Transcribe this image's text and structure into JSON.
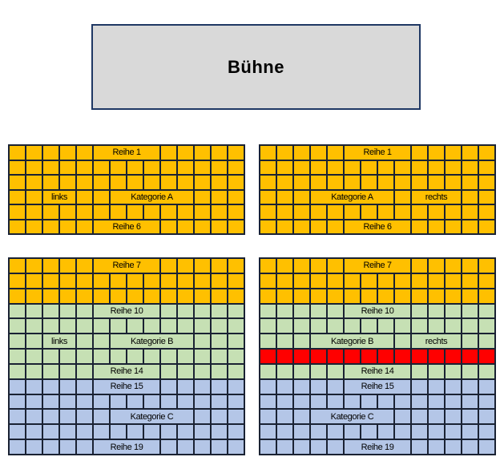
{
  "stage": {
    "label": "Bühne"
  },
  "colors": {
    "orange": "#FFC000",
    "green": "#C6E0B4",
    "blue": "#B4C6E7",
    "red": "#FF0000",
    "stage_fill": "#D9D9D9",
    "stage_border": "#1F3864",
    "grid_border": "#1A2233",
    "background": "#FFFFFF",
    "text": "#000000"
  },
  "blocks": [
    {
      "id": "upper_left",
      "side": "links",
      "cols": 14,
      "rows": [
        {
          "color": "orange",
          "labels": [
            {
              "text": "Reihe 1",
              "start": 6,
              "span": 4
            }
          ]
        },
        {
          "color": "orange",
          "labels": []
        },
        {
          "color": "orange",
          "labels": []
        },
        {
          "color": "orange",
          "labels": [
            {
              "text": "links",
              "start": 3,
              "span": 2
            },
            {
              "text": "Kategorie A",
              "start": 7,
              "span": 5
            }
          ]
        },
        {
          "color": "orange",
          "labels": []
        },
        {
          "color": "orange",
          "labels": [
            {
              "text": "Reihe 6",
              "start": 6,
              "span": 4
            }
          ]
        }
      ]
    },
    {
      "id": "upper_right",
      "side": "rechts",
      "cols": 14,
      "rows": [
        {
          "color": "orange",
          "labels": [
            {
              "text": "Reihe 1",
              "start": 6,
              "span": 4
            }
          ]
        },
        {
          "color": "orange",
          "labels": []
        },
        {
          "color": "orange",
          "labels": []
        },
        {
          "color": "orange",
          "labels": [
            {
              "text": "Kategorie A",
              "start": 4,
              "span": 5
            },
            {
              "text": "rechts",
              "start": 10,
              "span": 3
            }
          ]
        },
        {
          "color": "orange",
          "labels": []
        },
        {
          "color": "orange",
          "labels": [
            {
              "text": "Reihe 6",
              "start": 6,
              "span": 4
            }
          ]
        }
      ]
    },
    {
      "id": "lower_left",
      "side": "links",
      "cols": 14,
      "rows": [
        {
          "color": "orange",
          "labels": [
            {
              "text": "Reihe 7",
              "start": 6,
              "span": 4
            }
          ]
        },
        {
          "color": "orange",
          "labels": []
        },
        {
          "color": "orange",
          "labels": []
        },
        {
          "color": "green",
          "labels": [
            {
              "text": "Reihe 10",
              "start": 6,
              "span": 4
            }
          ]
        },
        {
          "color": "green",
          "labels": []
        },
        {
          "color": "green",
          "labels": [
            {
              "text": "links",
              "start": 3,
              "span": 2
            },
            {
              "text": "Kategorie B",
              "start": 7,
              "span": 5
            }
          ]
        },
        {
          "color": "green",
          "labels": []
        },
        {
          "color": "green",
          "labels": [
            {
              "text": "Reihe 14",
              "start": 6,
              "span": 4
            }
          ]
        },
        {
          "color": "blue",
          "labels": [
            {
              "text": "Reihe 15",
              "start": 6,
              "span": 4
            }
          ]
        },
        {
          "color": "blue",
          "labels": []
        },
        {
          "color": "blue",
          "labels": [
            {
              "text": "Kategorie C",
              "start": 7,
              "span": 5
            }
          ]
        },
        {
          "color": "blue",
          "labels": []
        },
        {
          "color": "blue",
          "labels": [
            {
              "text": "Reihe 19",
              "start": 6,
              "span": 4
            }
          ]
        }
      ]
    },
    {
      "id": "lower_right",
      "side": "rechts",
      "cols": 14,
      "rows": [
        {
          "color": "orange",
          "labels": [
            {
              "text": "Reihe 7",
              "start": 6,
              "span": 4
            }
          ]
        },
        {
          "color": "orange",
          "labels": []
        },
        {
          "color": "orange",
          "labels": []
        },
        {
          "color": "green",
          "labels": [
            {
              "text": "Reihe 10",
              "start": 6,
              "span": 4
            }
          ]
        },
        {
          "color": "green",
          "labels": []
        },
        {
          "color": "green",
          "labels": [
            {
              "text": "Kategorie B",
              "start": 4,
              "span": 5
            },
            {
              "text": "rechts",
              "start": 10,
              "span": 3
            }
          ]
        },
        {
          "color": "red",
          "labels": []
        },
        {
          "color": "green",
          "labels": [
            {
              "text": "Reihe 14",
              "start": 6,
              "span": 4
            }
          ]
        },
        {
          "color": "blue",
          "labels": [
            {
              "text": "Reihe 15",
              "start": 6,
              "span": 4
            }
          ]
        },
        {
          "color": "blue",
          "labels": []
        },
        {
          "color": "blue",
          "labels": [
            {
              "text": "Kategorie C",
              "start": 4,
              "span": 5
            }
          ]
        },
        {
          "color": "blue",
          "labels": []
        },
        {
          "color": "blue",
          "labels": [
            {
              "text": "Reihe 19",
              "start": 6,
              "span": 4
            }
          ]
        }
      ]
    }
  ]
}
